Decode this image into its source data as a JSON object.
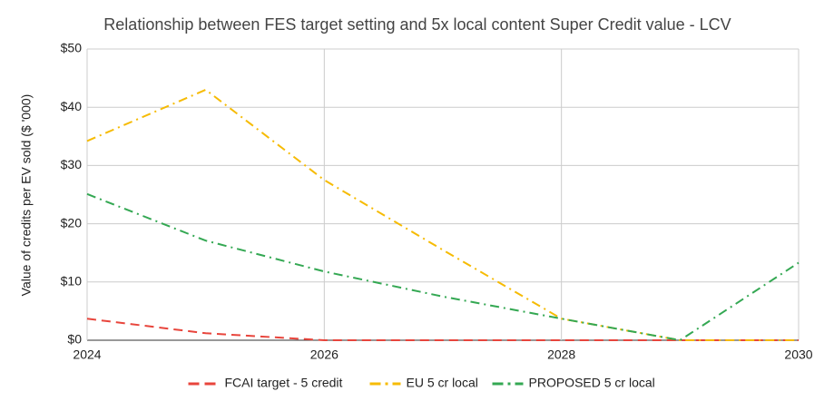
{
  "chart_data": {
    "type": "line",
    "title": "Relationship between FES target setting and 5x local content Super Credit value - LCV",
    "y_label": "Value of credits per EV sold ($ '000)",
    "x": [
      2024,
      2025,
      2026,
      2027,
      2028,
      2029,
      2030
    ],
    "series": [
      {
        "name": "FCAI target - 5 credit",
        "color": "#e8453c",
        "dash": "dashed",
        "values": [
          3.7,
          1.2,
          0,
          0,
          0,
          0,
          0
        ]
      },
      {
        "name": "EU 5 cr local",
        "color": "#f6bb04",
        "dash": "dashdot",
        "values": [
          34.2,
          43,
          27.5,
          15.5,
          3.7,
          0,
          0
        ]
      },
      {
        "name": "PROPOSED 5 cr local",
        "color": "#34a853",
        "dash": "dashdot",
        "values": [
          25.1,
          17.1,
          11.8,
          7.5,
          3.7,
          0,
          13.3
        ]
      }
    ],
    "xlim": [
      2024,
      2030
    ],
    "xticks": [
      2024,
      2026,
      2028,
      2030
    ],
    "ylim": [
      0,
      50
    ],
    "yticks": [
      {
        "value": 0,
        "label": "$0"
      },
      {
        "value": 10,
        "label": "$10"
      },
      {
        "value": 20,
        "label": "$20"
      },
      {
        "value": 30,
        "label": "$30"
      },
      {
        "value": 40,
        "label": "$40"
      },
      {
        "value": 50,
        "label": "$50"
      }
    ],
    "grid": true,
    "legend": "bottom"
  }
}
